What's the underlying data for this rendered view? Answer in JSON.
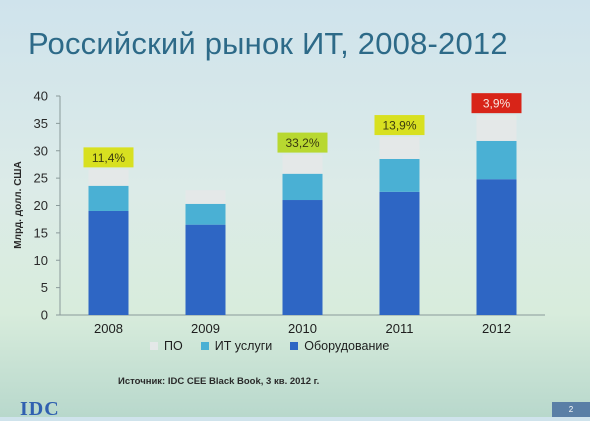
{
  "slide": {
    "title": "Российский рынок ИТ, 2008-2012",
    "source": "Источник: IDC CEE Black Book, 3 кв. 2012 г.",
    "logo_text": "IDC",
    "page_number": "2"
  },
  "colors": {
    "hardware": "#2e66c4",
    "services": "#4ab0d4",
    "software": "#e4e8e8",
    "badge_yellow": "#d8e020",
    "badge_green": "#b8d830",
    "badge_red": "#d82418"
  },
  "chart_data": {
    "type": "bar",
    "stacked": true,
    "title": "",
    "xlabel": "",
    "ylabel": "Млрд. долл. США",
    "ylim": [
      0,
      40
    ],
    "yticks": [
      0,
      5,
      10,
      15,
      20,
      25,
      30,
      35,
      40
    ],
    "grid": false,
    "legend_position": "bottom",
    "categories": [
      "2008",
      "2009",
      "2010",
      "2011",
      "2012"
    ],
    "series": [
      {
        "name": "Оборудование",
        "key": "hardware",
        "values": [
          19,
          16.5,
          21,
          22.5,
          24.8
        ]
      },
      {
        "name": "ИТ услуги",
        "key": "services",
        "values": [
          4.6,
          3.8,
          4.8,
          6.0,
          7.0
        ]
      },
      {
        "name": "ПО",
        "key": "software",
        "values": [
          3.0,
          2.5,
          3.5,
          4.0,
          4.7
        ]
      }
    ],
    "legend_order": [
      "ПО",
      "ИТ услуги",
      "Оборудование"
    ],
    "annotations": [
      {
        "category": "2008",
        "text": "11,4%",
        "style": "badge_yellow"
      },
      {
        "category": "2009",
        "text": "",
        "style": "none"
      },
      {
        "category": "2010",
        "text": "33,2%",
        "style": "badge_green"
      },
      {
        "category": "2011",
        "text": "13,9%",
        "style": "badge_yellow"
      },
      {
        "category": "2012",
        "text": "3,9%",
        "style": "badge_red"
      }
    ]
  }
}
